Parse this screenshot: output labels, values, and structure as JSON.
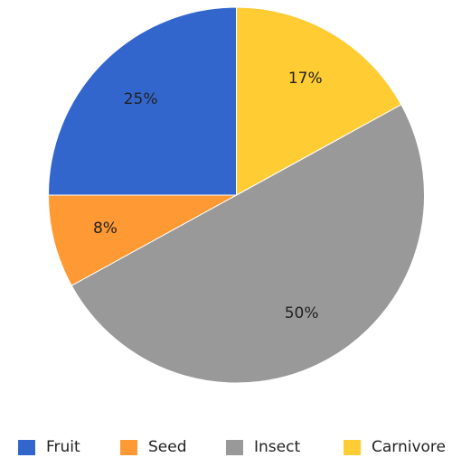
{
  "chart_data": {
    "type": "pie",
    "title": "",
    "start_angle_deg": 0,
    "direction": "clockwise",
    "legend_position": "bottom",
    "slices": [
      {
        "label": "Fruit",
        "value": 25,
        "display": "25%",
        "color": "#3366cc"
      },
      {
        "label": "Seed",
        "value": 8,
        "display": "8%",
        "color": "#ff9933"
      },
      {
        "label": "Insect",
        "value": 50,
        "display": "50%",
        "color": "#999999"
      },
      {
        "label": "Carnivore",
        "value": 17,
        "display": "17%",
        "color": "#ffcc33"
      }
    ]
  }
}
